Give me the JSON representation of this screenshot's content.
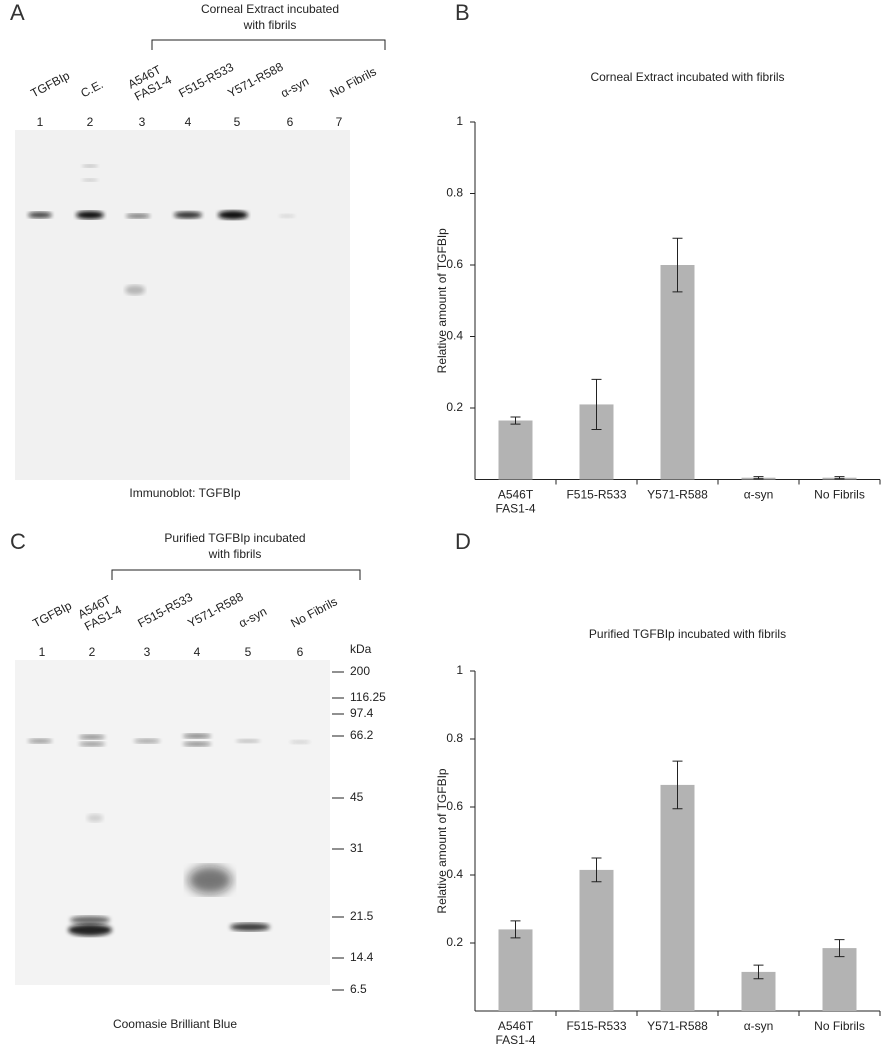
{
  "figure": {
    "gel_a": {
      "letter": "A",
      "bracket_lines": [
        "Corneal Extract incubated",
        "with fibrils"
      ],
      "lanes": [
        {
          "label": "TGFBIp",
          "number": 1
        },
        {
          "label": "C.E.",
          "number": 2
        },
        {
          "label": "A546T\nFAS1-4",
          "number": 3
        },
        {
          "label": "F515-R533",
          "number": 4
        },
        {
          "label": "Y571-R588",
          "number": 5
        },
        {
          "label": "α-syn",
          "number": 6
        },
        {
          "label": "No Fibrils",
          "number": 7
        }
      ],
      "caption": "Immunoblot: TGFBIp"
    },
    "gel_c": {
      "letter": "C",
      "bracket_lines": [
        "Purified TGFBIp incubated",
        "with fibrils"
      ],
      "lanes": [
        {
          "label": "TGFBIp",
          "number": 1
        },
        {
          "label": "A546T\nFAS1-4",
          "number": 2
        },
        {
          "label": "F515-R533",
          "number": 3
        },
        {
          "label": "Y571-R588",
          "number": 4
        },
        {
          "label": "α-syn",
          "number": 5
        },
        {
          "label": "No Fibrils",
          "number": 6
        }
      ],
      "marker_unit": "kDa",
      "markers": [
        200,
        116.25,
        97.4,
        66.2,
        45,
        31,
        21.5,
        14.4,
        6.5
      ],
      "caption": "Coomasie Brilliant Blue"
    },
    "chart_letters": [
      "B",
      "D"
    ]
  },
  "chart_data": [
    {
      "type": "bar",
      "title": "Corneal Extract incubated with fibrils",
      "ylabel": "Relative amount of TGFBIp",
      "categories": [
        "A546T\nFAS1-4",
        "F515-R533",
        "Y571-R588",
        "α-syn",
        "No Fibrils"
      ],
      "values": [
        0.165,
        0.21,
        0.6,
        0.005,
        0.005
      ],
      "errors": [
        0.01,
        0.07,
        0.075,
        0.003,
        0.003
      ],
      "color": "#b3b3b3",
      "ylim": [
        0,
        1
      ],
      "yticks": [
        0.2,
        0.4,
        0.6,
        0.8,
        1
      ]
    },
    {
      "type": "bar",
      "title": "Purified TGFBIp incubated with fibrils",
      "ylabel": "Relative amount of TGFBIp",
      "categories": [
        "A546T\nFAS1-4",
        "F515-R533",
        "Y571-R588",
        "α-syn",
        "No Fibrils"
      ],
      "values": [
        0.24,
        0.415,
        0.665,
        0.115,
        0.185
      ],
      "errors": [
        0.025,
        0.035,
        0.07,
        0.02,
        0.025
      ],
      "color": "#b3b3b3",
      "ylim": [
        0,
        1
      ],
      "yticks": [
        0.2,
        0.4,
        0.6,
        0.8,
        1
      ]
    }
  ]
}
